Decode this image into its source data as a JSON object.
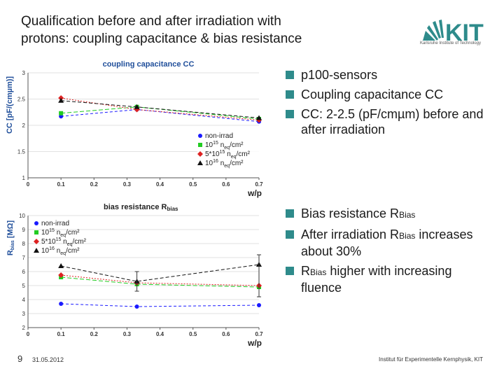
{
  "slide": {
    "title_line1": "Qualification before and after irradiation with",
    "title_line2": "protons: coupling capacitance & bias resistance",
    "page_number": "9",
    "date": "31.05.2012",
    "institute": "Institut für Experimentelle Kernphysik, KIT",
    "logo_text": "KIT",
    "logo_subtext": "Karlsruhe Institute of Technology"
  },
  "bullets_top": [
    "p100-sensors",
    "Coupling capacitance CC",
    "CC: 2-2.5 (pF/cmµm) before and after irradiation"
  ],
  "bullets_bottom": {
    "b1_prefix": "Bias resistance R",
    "b1_sub": "Bias",
    "b2_prefix": "After irradiation R",
    "b2_sub": "Bias",
    "b2_suffix": "increases about 30%",
    "b3_prefix": "R",
    "b3_sub": "Bias",
    "b3_suffix": "higher with increasing fluence"
  },
  "colors": {
    "accent": "#2e8b8b",
    "non_irrad": "#1a1aff",
    "f1e15": "#22cc22",
    "f5e15": "#dd2222",
    "f1e16": "#111111",
    "chart_title": "#1f4e9a"
  },
  "chart_data": [
    {
      "type": "line",
      "title": "coupling capacitance CC",
      "xlabel": "w/p",
      "ylabel": "CC [pF/(cmµm)]",
      "xlim": [
        0,
        0.7
      ],
      "ylim": [
        1,
        3
      ],
      "xticks": [
        "0",
        "0.1",
        "0.2",
        "0.3",
        "0.4",
        "0.5",
        "0.6",
        "0.7"
      ],
      "yticks": [
        "1",
        "1.5",
        "2",
        "2.5",
        "3"
      ],
      "x": [
        0.1,
        0.33,
        0.7
      ],
      "series": [
        {
          "name": "non-irrad",
          "legend": [
            "non-irrad"
          ],
          "marker": "circle",
          "values": [
            2.17,
            2.3,
            2.07
          ]
        },
        {
          "name": "1e15",
          "legend": [
            "10",
            "15",
            " n",
            "eq",
            "/cm²"
          ],
          "marker": "square",
          "values": [
            2.23,
            2.35,
            2.12
          ]
        },
        {
          "name": "5e15",
          "legend": [
            "5*10",
            "15",
            " n",
            "eq",
            "/cm²"
          ],
          "marker": "diamond",
          "values": [
            2.52,
            2.3,
            2.1
          ]
        },
        {
          "name": "1e16",
          "legend": [
            "10",
            "16",
            " n",
            "eq",
            "/cm²"
          ],
          "marker": "triangle",
          "values": [
            2.47,
            2.35,
            2.14
          ]
        }
      ]
    },
    {
      "type": "line",
      "title": "bias resistance R",
      "title_sub": "bias",
      "xlabel": "w/p",
      "ylabel": "R",
      "ylabel_sub": "bias",
      "ylabel_unit": " [MΩ]",
      "xlim": [
        0,
        0.7
      ],
      "ylim": [
        2,
        10
      ],
      "xticks": [
        "0",
        "0.1",
        "0.2",
        "0.3",
        "0.4",
        "0.5",
        "0.6",
        "0.7"
      ],
      "yticks": [
        "2",
        "3",
        "4",
        "5",
        "6",
        "7",
        "8",
        "9",
        "10"
      ],
      "x": [
        0.1,
        0.33,
        0.7
      ],
      "series": [
        {
          "name": "non-irrad",
          "legend": [
            "non-irrad"
          ],
          "marker": "circle",
          "values": [
            3.7,
            3.5,
            3.6
          ]
        },
        {
          "name": "1e15",
          "legend": [
            "10",
            "15",
            " n",
            "eq",
            "/cm²"
          ],
          "marker": "square",
          "values": [
            5.6,
            5.1,
            4.9
          ]
        },
        {
          "name": "5e15",
          "legend": [
            "5*10",
            "15",
            " n",
            "eq",
            "/cm²"
          ],
          "marker": "diamond",
          "values": [
            5.75,
            5.2,
            5.0
          ]
        },
        {
          "name": "1e16",
          "legend": [
            "10",
            "16",
            " n",
            "eq",
            "/cm²"
          ],
          "marker": "triangle",
          "values": [
            6.4,
            5.3,
            6.5
          ]
        }
      ]
    }
  ]
}
